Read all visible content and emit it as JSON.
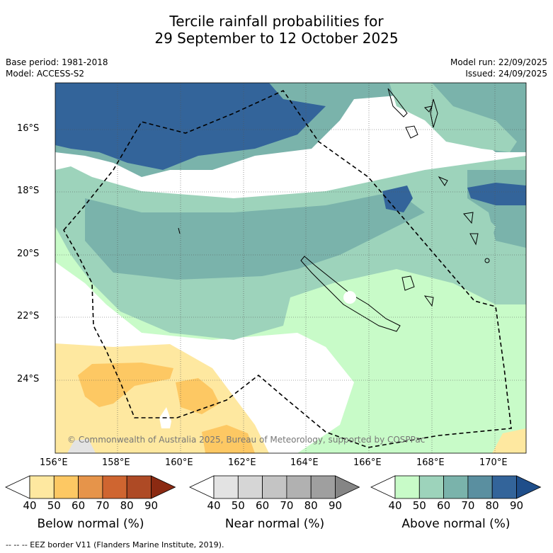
{
  "title_line1": "Tercile rainfall probabilities for",
  "title_line2": "29 September to 12 October 2025",
  "meta_left": {
    "base_period": "Base period: 1981-2018",
    "model": "Model: ACCESS-S2"
  },
  "meta_right": {
    "model_run": "Model run: 22/09/2025",
    "issued": "Issued: 24/09/2025"
  },
  "lat_ticks": [
    "16°S",
    "18°S",
    "20°S",
    "22°S",
    "24°S"
  ],
  "lon_ticks": [
    "156°E",
    "158°E",
    "160°E",
    "162°E",
    "164°E",
    "166°E",
    "168°E",
    "170°E"
  ],
  "copyright": "© Commonwealth of Australia 2025, Bureau of Meteorology, supported by COSPPac",
  "colorbars": [
    {
      "label": "Below normal (%)",
      "ticks": [
        "40",
        "50",
        "60",
        "70",
        "80",
        "90"
      ],
      "colors": [
        "#ffffff",
        "#fee8a0",
        "#fdc863",
        "#e6944a",
        "#cf6530",
        "#ae4a25",
        "#8b2a12"
      ]
    },
    {
      "label": "Near normal (%)",
      "ticks": [
        "40",
        "50",
        "60",
        "70",
        "80",
        "90"
      ],
      "colors": [
        "#ffffff",
        "#e3e3e3",
        "#d6d6d6",
        "#c4c4c4",
        "#b1b1b1",
        "#9f9f9f",
        "#858585"
      ]
    },
    {
      "label": "Above normal (%)",
      "ticks": [
        "40",
        "50",
        "60",
        "70",
        "80",
        "90"
      ],
      "colors": [
        "#ffffff",
        "#c8fbc8",
        "#9dd3bb",
        "#7ab3ab",
        "#5a8fa0",
        "#33649a",
        "#1f4e8a"
      ]
    }
  ],
  "footer": "--  --  -- EEZ border V11 (Flanders Marine Institute, 2019)."
}
